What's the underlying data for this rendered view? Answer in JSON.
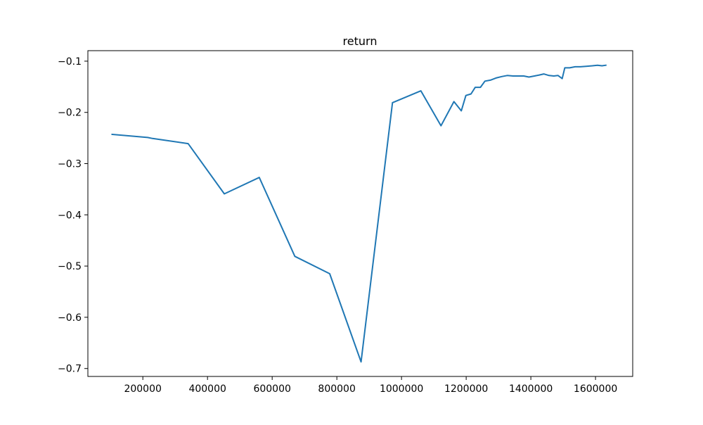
{
  "chart_data": {
    "type": "line",
    "title": "return",
    "xlabel": "",
    "ylabel": "",
    "xlim": [
      30000,
      1715000
    ],
    "ylim": [
      -0.7155,
      -0.0795
    ],
    "grid": false,
    "legend": "none",
    "line_color": "#1f77b4",
    "x_ticks": [
      200000,
      400000,
      600000,
      800000,
      1000000,
      1200000,
      1400000,
      1600000
    ],
    "x_tick_labels": [
      "200000",
      "400000",
      "600000",
      "800000",
      "1000000",
      "1200000",
      "1400000",
      "1600000"
    ],
    "y_ticks": [
      -0.1,
      -0.2,
      -0.3,
      -0.4,
      -0.5,
      -0.6,
      -0.7
    ],
    "y_tick_labels": [
      "−0.1",
      "−0.2",
      "−0.3",
      "−0.4",
      "−0.5",
      "−0.6",
      "−0.7"
    ],
    "series": [
      {
        "x": [
          105000,
          215000,
          230000,
          340000,
          452000,
          560000,
          670000,
          778000,
          875000,
          972000,
          1060000,
          1122000,
          1162000,
          1185000,
          1199000,
          1215000,
          1228000,
          1244000,
          1258000,
          1275000,
          1292000,
          1310000,
          1327000,
          1345000,
          1362000,
          1378000,
          1394000,
          1411000,
          1426000,
          1440000,
          1456000,
          1471000,
          1484000,
          1497000,
          1505000,
          1520000,
          1537000,
          1553000,
          1571000,
          1590000,
          1606000,
          1620000,
          1632000
        ],
        "y": [
          -0.243,
          -0.249,
          -0.251,
          -0.261,
          -0.359,
          -0.327,
          -0.481,
          -0.515,
          -0.687,
          -0.181,
          -0.158,
          -0.226,
          -0.179,
          -0.197,
          -0.167,
          -0.164,
          -0.151,
          -0.151,
          -0.139,
          -0.137,
          -0.133,
          -0.13,
          -0.128,
          -0.129,
          -0.129,
          -0.129,
          -0.131,
          -0.129,
          -0.127,
          -0.125,
          -0.128,
          -0.129,
          -0.128,
          -0.134,
          -0.113,
          -0.113,
          -0.111,
          -0.111,
          -0.11,
          -0.109,
          -0.108,
          -0.109,
          -0.108
        ]
      }
    ]
  }
}
